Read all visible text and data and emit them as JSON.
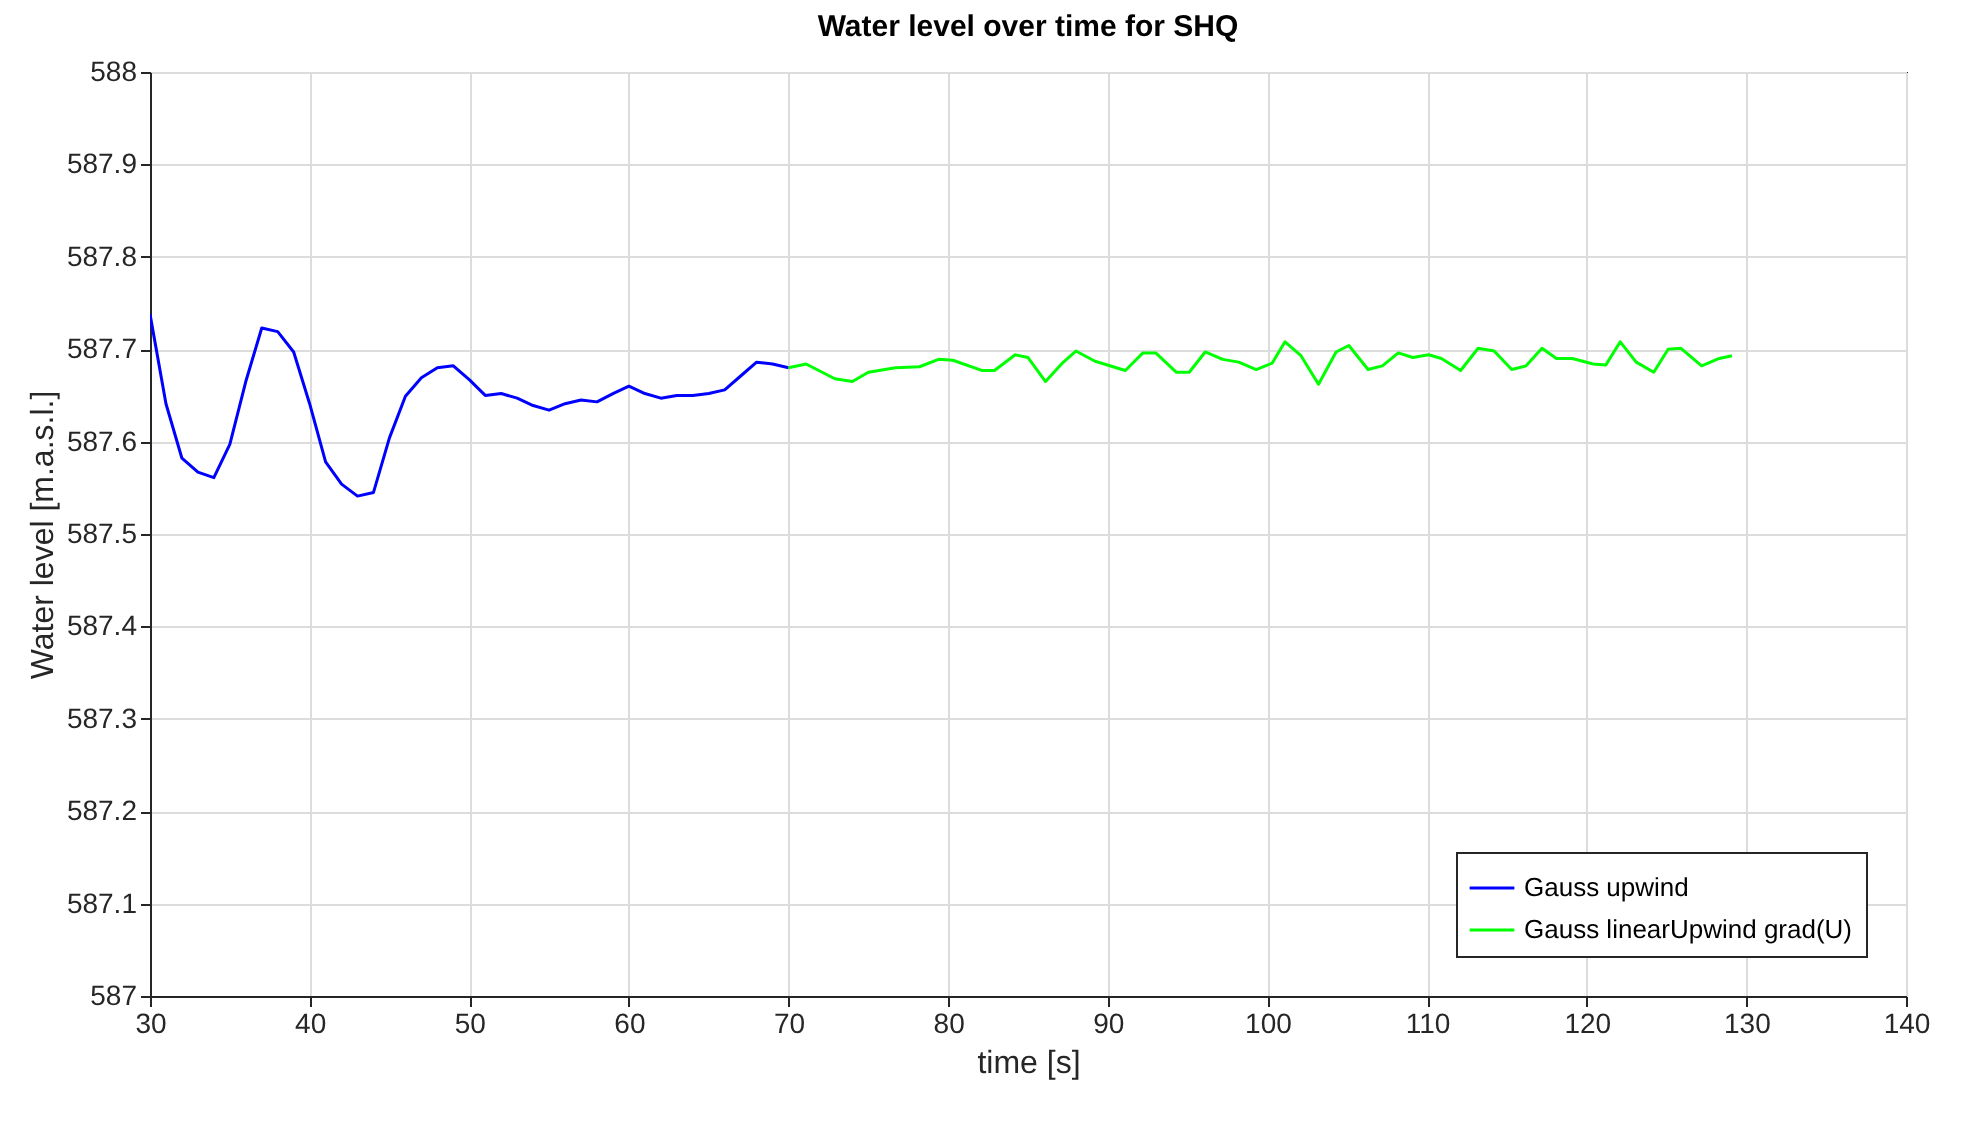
{
  "chart_data": {
    "type": "line",
    "title": "Water level over time for SHQ",
    "xlabel": "time [s]",
    "ylabel": "Water level [m.a.s.l.]",
    "xlim": [
      30,
      140
    ],
    "xticks": [
      30,
      40,
      50,
      60,
      70,
      80,
      90,
      100,
      110,
      120,
      130,
      140
    ],
    "ylim": [
      587,
      588
    ],
    "yticks": [
      587,
      587.1,
      587.2,
      587.3,
      587.4,
      587.5,
      587.6,
      587.7,
      587.8,
      587.9,
      588
    ],
    "grid": true,
    "legend": "bottom right",
    "marker": "none",
    "line_style": "solid",
    "series": [
      {
        "name": "Gauss upwind",
        "color": "#0000ff",
        "x": [
          30,
          31,
          32,
          33,
          34,
          35,
          36,
          37,
          38,
          39,
          40,
          41,
          42,
          43,
          44,
          45,
          46,
          47,
          48,
          49,
          50,
          51,
          52,
          53,
          54,
          55,
          56,
          57,
          58,
          59,
          60,
          61,
          62,
          63,
          64,
          65,
          66,
          67,
          68,
          69,
          70
        ],
        "values": [
          587.738,
          587.641,
          587.582,
          587.567,
          587.561,
          587.597,
          587.665,
          587.723,
          587.719,
          587.697,
          587.641,
          587.578,
          587.554,
          587.541,
          587.545,
          587.604,
          587.649,
          587.669,
          587.68,
          587.682,
          587.667,
          587.65,
          587.652,
          587.647,
          587.639,
          587.634,
          587.641,
          587.645,
          587.643,
          587.652,
          587.66,
          587.652,
          587.647,
          587.65,
          587.65,
          587.652,
          587.656,
          587.671,
          587.686,
          587.684,
          587.68
        ]
      },
      {
        "name": "Gauss linearUpwind grad(U)",
        "color": "#00ff00",
        "x": [
          70,
          71.1,
          72.9,
          74,
          75,
          76.7,
          78.2,
          79.4,
          80.3,
          82.1,
          82.9,
          84.2,
          85,
          86.1,
          87.1,
          88,
          89.2,
          91.1,
          92.2,
          93,
          94.3,
          95.1,
          96.1,
          97.2,
          98.2,
          99.3,
          100.3,
          101.1,
          102.1,
          103.2,
          104.3,
          105.1,
          106.3,
          107.2,
          108.2,
          109.1,
          110.1,
          110.9,
          112.1,
          113.2,
          114.2,
          115.3,
          116.2,
          117.2,
          118.1,
          119.1,
          120.4,
          121.2,
          122.1,
          123.1,
          124.2,
          125.1,
          125.9,
          127.2,
          128.3,
          129.1
        ],
        "values": [
          587.68,
          587.684,
          587.668,
          587.665,
          587.675,
          587.68,
          587.681,
          587.689,
          587.688,
          587.677,
          587.677,
          587.694,
          587.691,
          587.665,
          587.684,
          587.698,
          587.687,
          587.677,
          587.696,
          587.696,
          587.675,
          587.675,
          587.697,
          587.689,
          587.686,
          587.678,
          587.685,
          587.708,
          587.693,
          587.662,
          587.697,
          587.704,
          587.678,
          587.682,
          587.696,
          587.691,
          587.694,
          587.69,
          587.677,
          587.701,
          587.698,
          587.678,
          587.682,
          587.701,
          587.69,
          587.69,
          587.684,
          587.683,
          587.708,
          587.686,
          587.675,
          587.7,
          587.701,
          587.682,
          587.69,
          587.693
        ]
      }
    ]
  }
}
